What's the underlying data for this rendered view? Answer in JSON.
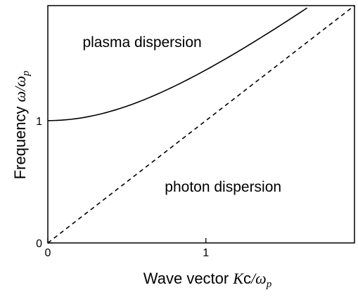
{
  "chart_data": {
    "type": "line",
    "title": "",
    "xlabel": {
      "prefix": "Wave vector ",
      "k": "K",
      "c": "c",
      "slash": "/",
      "omega": "ω",
      "sub": "p"
    },
    "ylabel": {
      "prefix": "Frequency ",
      "omega": "ω",
      "slash": "/",
      "omega_p": "ω",
      "sub": "p"
    },
    "xlim": [
      0,
      1.94
    ],
    "ylim": [
      0,
      1.94
    ],
    "xticks": [
      {
        "value": 0,
        "label": "0"
      },
      {
        "value": 1,
        "label": "1"
      }
    ],
    "yticks": [
      {
        "value": 0,
        "label": "0"
      },
      {
        "value": 1,
        "label": "1"
      }
    ],
    "grid": false,
    "legend": "none",
    "series": [
      {
        "style": "solid",
        "formula": "omega = sqrt(1 + k^2)",
        "x": [
          0,
          0.2,
          0.4,
          0.6,
          0.8,
          1.0,
          1.2,
          1.4,
          1.6,
          1.64
        ],
        "y": [
          1.0,
          1.02,
          1.077,
          1.166,
          1.281,
          1.414,
          1.562,
          1.72,
          1.887,
          1.925
        ]
      },
      {
        "style": "dashed",
        "formula": "omega = k",
        "x": [
          0,
          1.94
        ],
        "y": [
          0,
          1.94
        ]
      }
    ],
    "annotations": [
      {
        "text": "plasma dispersion",
        "x": 0.22,
        "y": 1.6
      },
      {
        "text": "photon dispersion",
        "x": 0.74,
        "y": 0.42
      }
    ]
  }
}
